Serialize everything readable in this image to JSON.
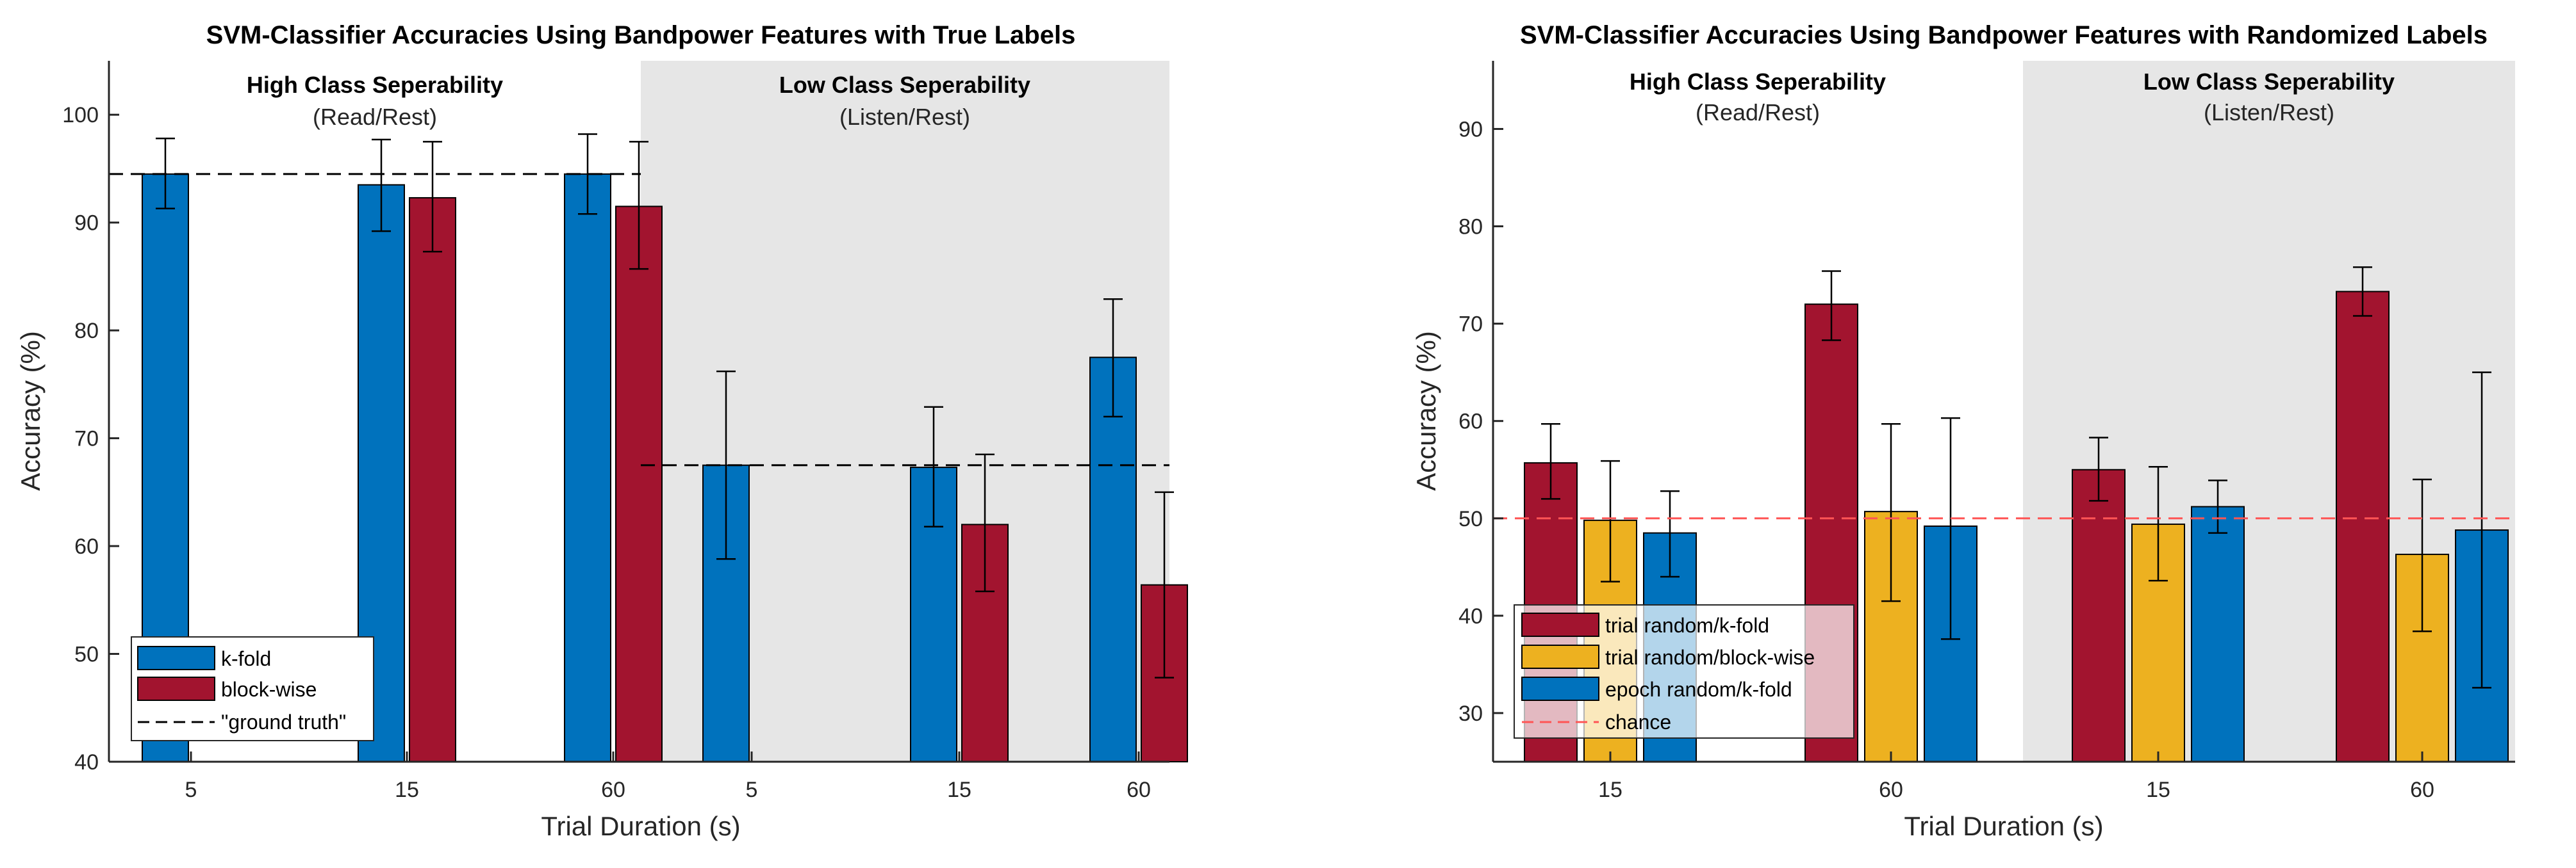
{
  "chart_data": [
    {
      "type": "bar",
      "title": "SVM-Classifier Accuracies Using Bandpower Features with True Labels",
      "xlabel": "Trial Duration (s)",
      "ylabel": "Accuracy (%)",
      "ylim": [
        40,
        105
      ],
      "yticks": [
        40,
        50,
        60,
        70,
        80,
        90,
        100
      ],
      "regions": [
        {
          "title": "High Class Seperability",
          "subtitle": "(Read/Rest)",
          "shaded": false
        },
        {
          "title": "Low Class Seperability",
          "subtitle": "(Listen/Rest)",
          "shaded": true
        }
      ],
      "groups": [
        {
          "label": "5",
          "region": 0
        },
        {
          "label": "15",
          "region": 0
        },
        {
          "label": "60",
          "region": 0
        },
        {
          "label": "5",
          "region": 1
        },
        {
          "label": "15",
          "region": 1
        },
        {
          "label": "60",
          "region": 1
        }
      ],
      "series": [
        {
          "name": "k-fold",
          "color": "#0072BD",
          "values": [
            94.5,
            93.5,
            94.5,
            67.5,
            67.3,
            77.5
          ],
          "err_low": [
            91.3,
            89.2,
            90.8,
            58.8,
            61.8,
            72.0
          ],
          "err_high": [
            97.8,
            97.7,
            98.2,
            76.2,
            72.9,
            82.9
          ]
        },
        {
          "name": "block-wise",
          "color": "#A2142F",
          "values": [
            null,
            92.3,
            91.5,
            null,
            62.0,
            56.4
          ],
          "err_low": [
            null,
            87.3,
            85.7,
            null,
            55.8,
            47.8
          ],
          "err_high": [
            null,
            97.5,
            97.5,
            null,
            68.5,
            65.0
          ]
        }
      ],
      "reference_lines": [
        {
          "name": "\"ground truth\"",
          "region": 0,
          "value": 94.5,
          "color": "#000000"
        },
        {
          "region": 1,
          "value": 67.5,
          "color": "#000000"
        }
      ],
      "legend_position": "bottom-left"
    },
    {
      "type": "bar",
      "title": "SVM-Classifier Accuracies Using Bandpower Features with Randomized Labels",
      "xlabel": "Trial Duration (s)",
      "ylabel": "Accuracy (%)",
      "ylim": [
        25,
        97
      ],
      "yticks": [
        30,
        40,
        50,
        60,
        70,
        80,
        90
      ],
      "regions": [
        {
          "title": "High Class Seperability",
          "subtitle": "(Read/Rest)",
          "shaded": false
        },
        {
          "title": "Low Class Seperability",
          "subtitle": "(Listen/Rest)",
          "shaded": true
        }
      ],
      "groups": [
        {
          "label": "15",
          "region": 0
        },
        {
          "label": "60",
          "region": 0
        },
        {
          "label": "15",
          "region": 1
        },
        {
          "label": "60",
          "region": 1
        }
      ],
      "series": [
        {
          "name": "trial random/k-fold",
          "color": "#A2142F",
          "values": [
            55.7,
            72.0,
            55.0,
            73.3
          ],
          "err_low": [
            52.0,
            68.3,
            51.8,
            70.8
          ],
          "err_high": [
            59.7,
            75.4,
            58.3,
            75.8
          ]
        },
        {
          "name": "trial random/block-wise",
          "color": "#EDB120",
          "values": [
            49.8,
            50.7,
            49.4,
            46.3
          ],
          "err_low": [
            43.5,
            41.5,
            43.6,
            38.4
          ],
          "err_high": [
            55.9,
            59.7,
            55.3,
            54.0
          ]
        },
        {
          "name": "epoch random/k-fold",
          "color": "#0072BD",
          "values": [
            48.5,
            49.2,
            51.2,
            48.8
          ],
          "err_low": [
            44.0,
            37.6,
            48.5,
            32.6
          ],
          "err_high": [
            52.8,
            60.3,
            53.9,
            65.0
          ]
        }
      ],
      "reference_lines": [
        {
          "name": "chance",
          "value": 50,
          "color": "#FF5555",
          "full_width": true
        }
      ],
      "legend_position": "bottom-left"
    }
  ]
}
